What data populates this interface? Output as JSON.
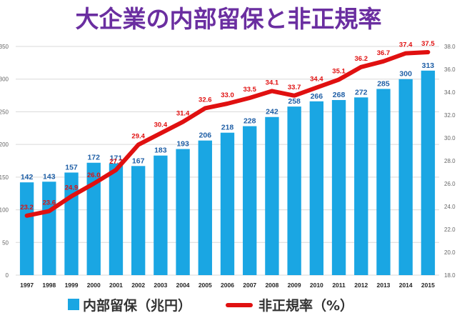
{
  "chart_data": {
    "type": "bar",
    "title": "大企業の内部留保と非正規率",
    "categories": [
      "1997",
      "1998",
      "1999",
      "2000",
      "2001",
      "2002",
      "2003",
      "2004",
      "2005",
      "2006",
      "2007",
      "2008",
      "2009",
      "2010",
      "2011",
      "2012",
      "2013",
      "2014",
      "2015"
    ],
    "series": [
      {
        "name": "内部留保（兆円）",
        "type": "bar",
        "axis": "left",
        "color": "#1aa6e3",
        "values": [
          142,
          143,
          157,
          172,
          171,
          167,
          183,
          193,
          206,
          218,
          228,
          242,
          258,
          266,
          268,
          272,
          285,
          300,
          313
        ]
      },
      {
        "name": "非正規率（%）",
        "type": "line",
        "axis": "right",
        "color": "#e01010",
        "values": [
          23.2,
          23.6,
          24.9,
          26.0,
          27.2,
          29.4,
          30.4,
          31.4,
          32.6,
          33.0,
          33.5,
          34.1,
          33.7,
          34.4,
          35.1,
          36.2,
          36.7,
          37.4,
          37.5
        ]
      }
    ],
    "ylim": [
      0,
      350
    ],
    "yticks": [
      "0",
      "50",
      "100",
      "150",
      "200",
      "250",
      "300",
      "350"
    ],
    "y2lim": [
      18.0,
      38.0
    ],
    "y2ticks": [
      "18.0",
      "20.0",
      "22.0",
      "24.0",
      "26.0",
      "28.0",
      "30.0",
      "32.0",
      "34.0",
      "36.0",
      "38.0"
    ],
    "grid": true,
    "legend": "bottom"
  },
  "colors": {
    "title": "#6a2ea0",
    "bar": "#1aa6e3",
    "line": "#e01010",
    "bar_label": "#1f5fa6",
    "grid": "#d9d9d9"
  }
}
